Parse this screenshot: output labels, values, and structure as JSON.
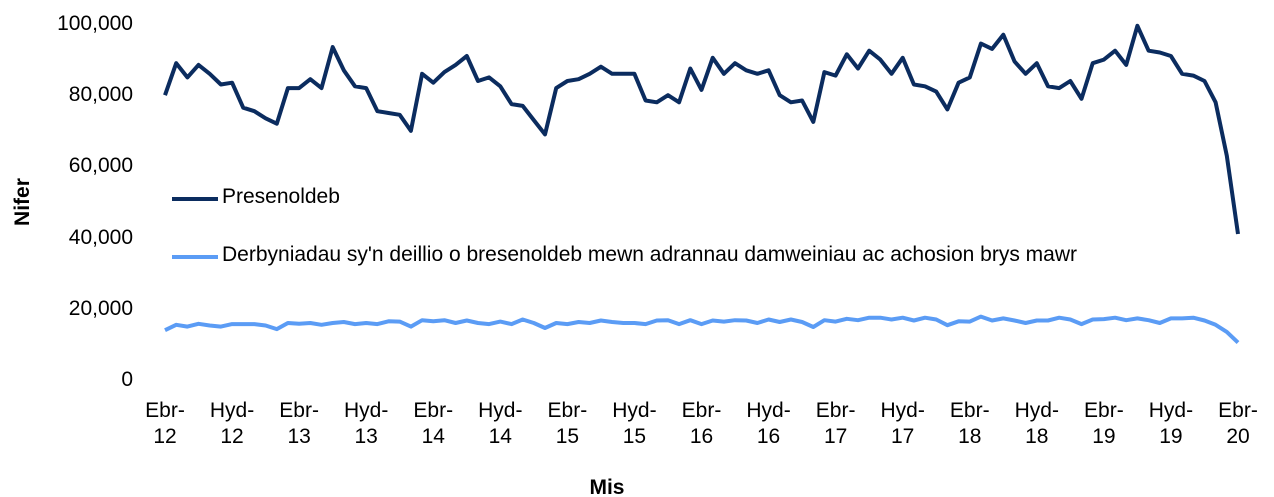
{
  "chart_data": {
    "type": "line",
    "x_label": "Mis",
    "y_label": "Nifer",
    "categories": [
      "Ebr-12",
      null,
      null,
      null,
      null,
      null,
      "Hyd-12",
      null,
      null,
      null,
      null,
      null,
      "Ebr-13",
      null,
      null,
      null,
      null,
      null,
      "Hyd-13",
      null,
      null,
      null,
      null,
      null,
      "Ebr-14",
      null,
      null,
      null,
      null,
      null,
      "Hyd-14",
      null,
      null,
      null,
      null,
      null,
      "Ebr-15",
      null,
      null,
      null,
      null,
      null,
      "Hyd-15",
      null,
      null,
      null,
      null,
      null,
      "Ebr-16",
      null,
      null,
      null,
      null,
      null,
      "Hyd-16",
      null,
      null,
      null,
      null,
      null,
      "Ebr-17",
      null,
      null,
      null,
      null,
      null,
      "Hyd-17",
      null,
      null,
      null,
      null,
      null,
      "Ebr-18",
      null,
      null,
      null,
      null,
      null,
      "Hyd-18",
      null,
      null,
      null,
      null,
      null,
      "Ebr-19",
      null,
      null,
      null,
      null,
      null,
      "Hyd-19",
      null,
      null,
      null,
      null,
      null,
      "Ebr-20"
    ],
    "series": [
      {
        "name": "Presenoldeb",
        "color": "#0b2c5f",
        "values": [
          80000,
          89000,
          85000,
          88500,
          86000,
          83000,
          83500,
          76500,
          75500,
          73500,
          72000,
          82000,
          82000,
          84500,
          82000,
          93500,
          87000,
          82500,
          82000,
          75500,
          75000,
          74500,
          70000,
          86000,
          83500,
          86500,
          88500,
          91000,
          84000,
          85000,
          82500,
          77500,
          77000,
          73000,
          69000,
          82000,
          84000,
          84500,
          86000,
          88000,
          86000,
          86000,
          86000,
          78500,
          78000,
          80000,
          78000,
          87500,
          81500,
          90500,
          86000,
          89000,
          87000,
          86000,
          87000,
          80000,
          78000,
          78500,
          72500,
          86500,
          85500,
          91500,
          87500,
          92500,
          90000,
          86000,
          90500,
          83000,
          82500,
          81000,
          76000,
          83500,
          85000,
          94500,
          93000,
          97000,
          89500,
          86000,
          89000,
          82500,
          82000,
          84000,
          79000,
          89000,
          90000,
          92500,
          88500,
          99500,
          92500,
          92000,
          91000,
          86000,
          85500,
          84000,
          78000,
          63000,
          41000
        ]
      },
      {
        "name": "Derbyniadau sy'n deillio o bresenoldeb mewn adrannau damweiniau ac achosion brys mawr",
        "color": "#5b9cf5",
        "values": [
          14000,
          15500,
          15000,
          15800,
          15300,
          15000,
          15700,
          15700,
          15700,
          15300,
          14300,
          16000,
          15800,
          16000,
          15500,
          16000,
          16300,
          15700,
          16000,
          15700,
          16500,
          16400,
          15000,
          16800,
          16500,
          16800,
          16000,
          16700,
          16000,
          15700,
          16400,
          15700,
          17000,
          16000,
          14600,
          16000,
          15700,
          16300,
          16000,
          16700,
          16300,
          16000,
          16000,
          15700,
          16700,
          16800,
          15700,
          16800,
          15700,
          16700,
          16400,
          16800,
          16700,
          16000,
          17000,
          16300,
          17000,
          16300,
          14900,
          16800,
          16400,
          17200,
          16800,
          17500,
          17500,
          17000,
          17500,
          16700,
          17500,
          17000,
          15400,
          16500,
          16400,
          17800,
          16700,
          17300,
          16700,
          16000,
          16700,
          16700,
          17500,
          17000,
          15700,
          17000,
          17100,
          17500,
          16800,
          17300,
          16800,
          16000,
          17300,
          17300,
          17500,
          16700,
          15500,
          13500,
          10500
        ]
      }
    ],
    "ylim": [
      0,
      100000
    ],
    "yticks": [
      0,
      {
        "value": 20000,
        "label": "20,000"
      },
      {
        "value": 40000,
        "label": "40,000"
      },
      {
        "value": 60000,
        "label": "60,000"
      },
      {
        "value": 80000,
        "label": "80,000"
      },
      {
        "value": 100000,
        "label": "100,000"
      }
    ],
    "grid": false,
    "legend": "left"
  }
}
